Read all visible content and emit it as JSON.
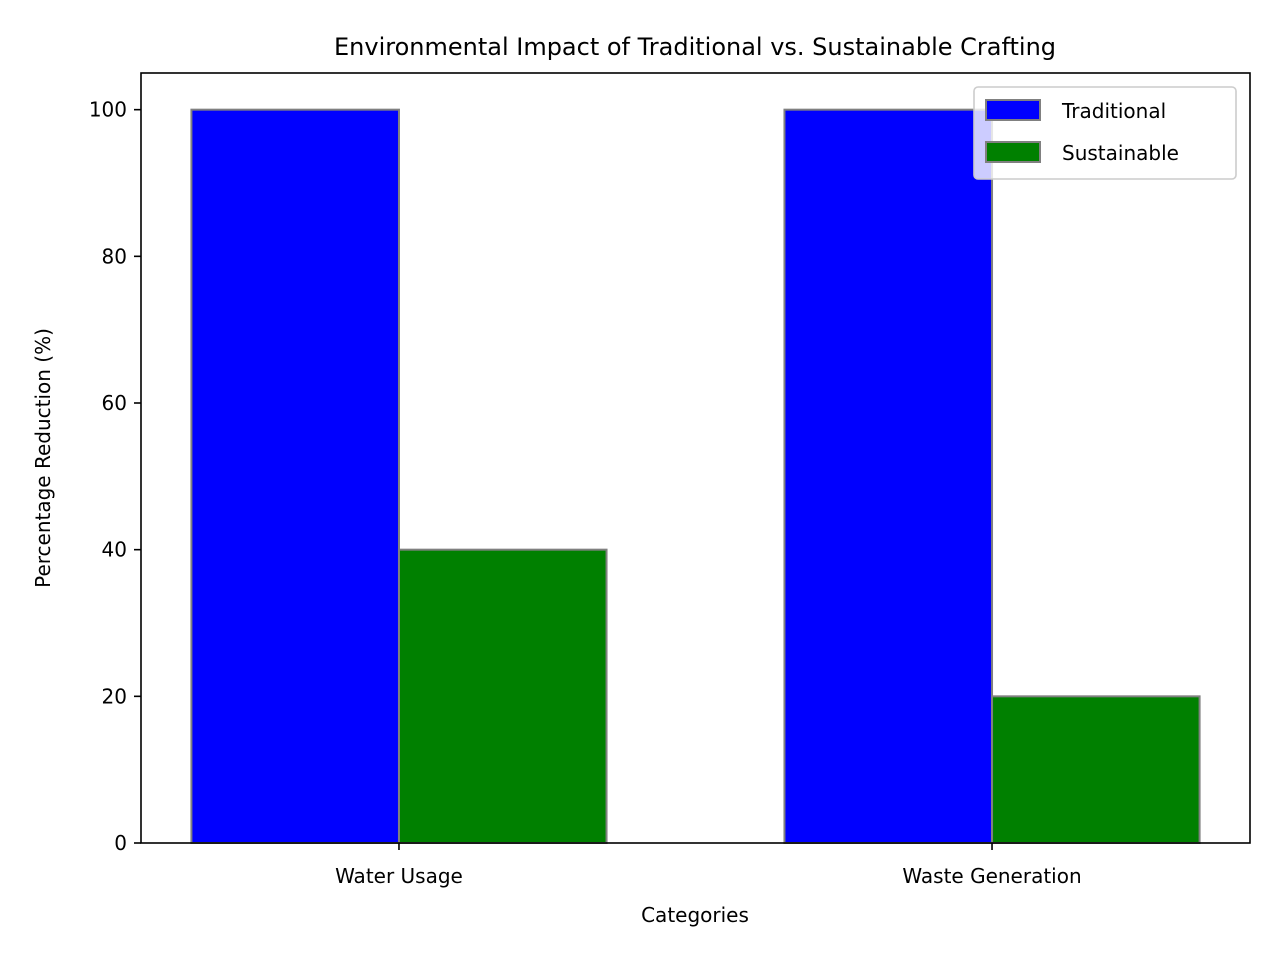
{
  "chart_data": {
    "type": "bar",
    "title": "Environmental Impact of Traditional vs. Sustainable Crafting",
    "xlabel": "Categories",
    "ylabel": "Percentage Reduction (%)",
    "categories": [
      "Water Usage",
      "Waste Generation"
    ],
    "series": [
      {
        "name": "Traditional",
        "values": [
          100,
          100
        ],
        "color": "#0000ff"
      },
      {
        "name": "Sustainable",
        "values": [
          40,
          20
        ],
        "color": "#008000"
      }
    ],
    "ylim": [
      0,
      105
    ],
    "yticks": [
      0,
      20,
      40,
      60,
      80,
      100
    ],
    "grid": false,
    "legend_position": "top-right",
    "bar_edge_color": "#808080"
  }
}
